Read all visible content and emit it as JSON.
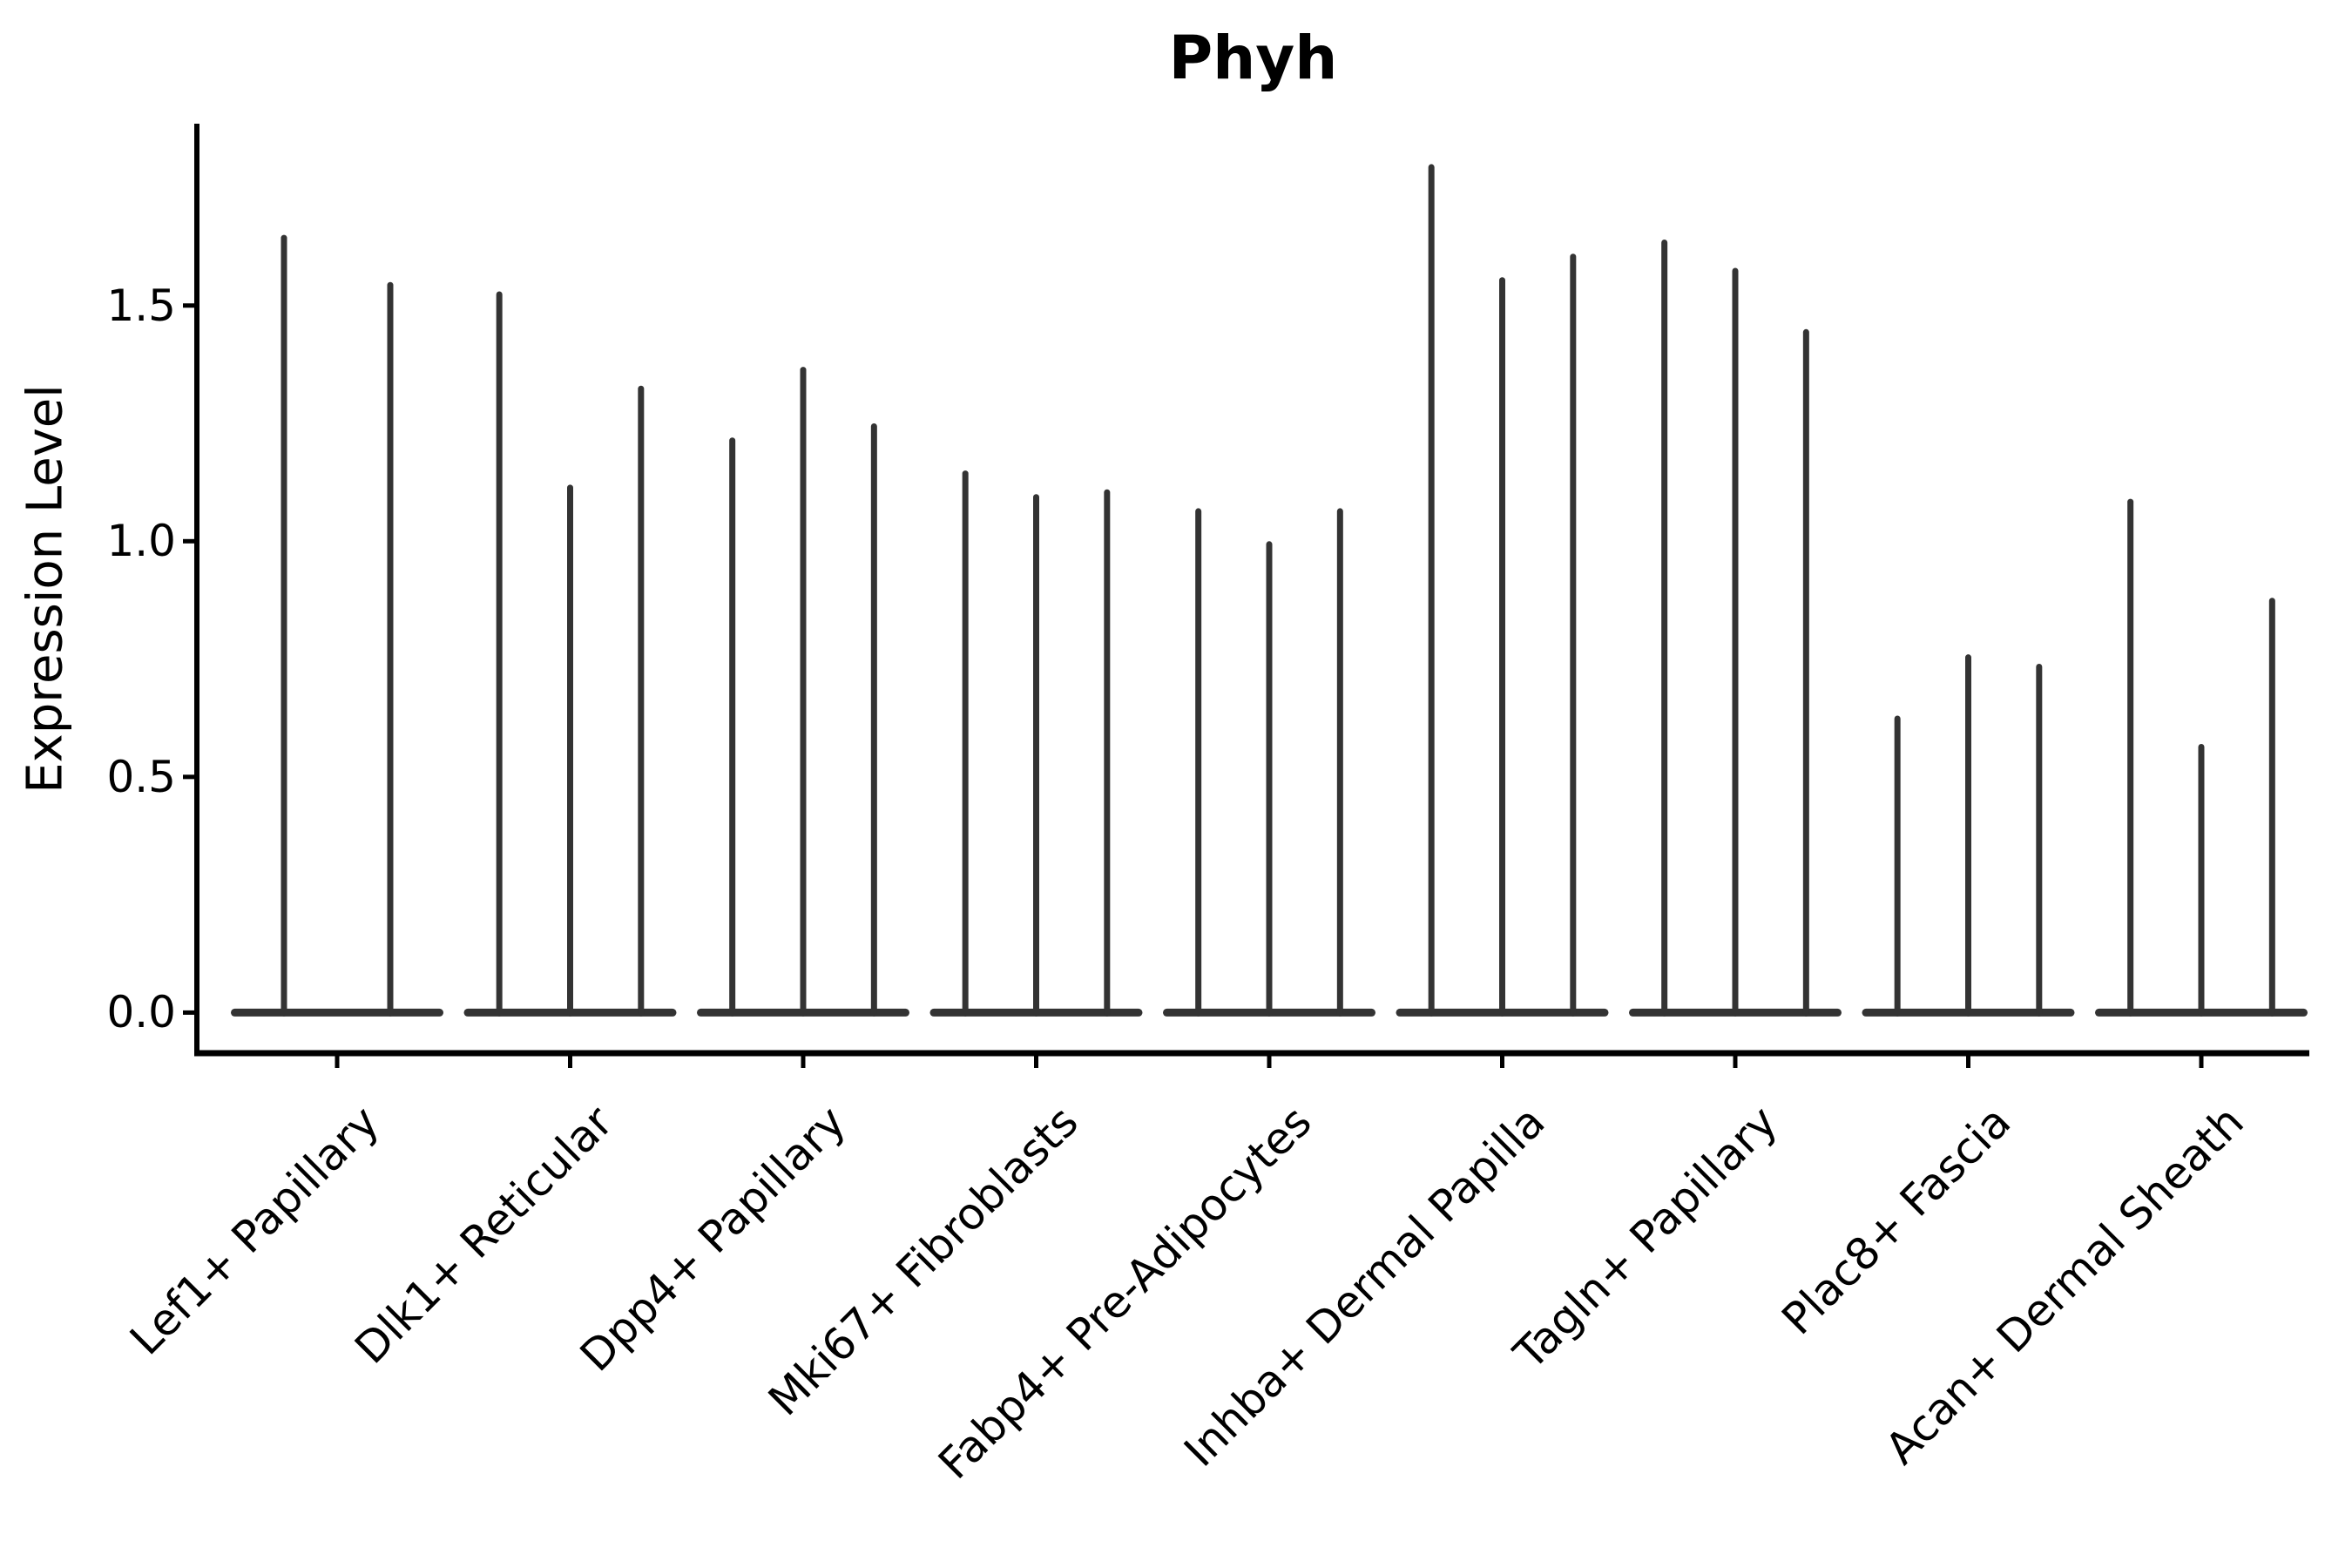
{
  "title": "Phyh",
  "axes": {
    "y_label": "Expression Level",
    "y_ticks": [
      "0.0",
      "0.5",
      "1.0",
      "1.5"
    ]
  },
  "chart_data": {
    "type": "violin",
    "title": "Phyh",
    "xlabel": "",
    "ylabel": "Expression Level",
    "ylim": [
      0,
      1.89
    ],
    "y_tick_values": [
      0.0,
      0.5,
      1.0,
      1.5
    ],
    "grid": false,
    "legend": "none",
    "description": "Thin violin plots; nearly all density mass at expression 0 (flat base) with narrow spikes reaching each violin's maximum expression value",
    "categories": [
      "Lef1+ Papillary",
      "Dlk1+ Reticular",
      "Dpp4+ Papillary",
      "Mki67+ Fibroblasts",
      "Fabp4+ Pre-Adipocytes",
      "Inhba+ Dermal Papilla",
      "Tagln+ Papillary",
      "Plac8+ Fascia",
      "Acan+ Dermal Sheath"
    ],
    "series": [
      {
        "category": "Lef1+ Papillary",
        "violin_max_values": [
          1.65,
          1.55
        ]
      },
      {
        "category": "Dlk1+ Reticular",
        "violin_max_values": [
          1.53,
          1.12,
          1.33
        ]
      },
      {
        "category": "Dpp4+ Papillary",
        "violin_max_values": [
          1.22,
          1.37,
          1.25
        ]
      },
      {
        "category": "Mki67+ Fibroblasts",
        "violin_max_values": [
          1.15,
          1.1,
          1.11
        ]
      },
      {
        "category": "Fabp4+ Pre-Adipocytes",
        "violin_max_values": [
          1.07,
          1.0,
          1.07
        ]
      },
      {
        "category": "Inhba+ Dermal Papilla",
        "violin_max_values": [
          1.8,
          1.56,
          1.61
        ]
      },
      {
        "category": "Tagln+ Papillary",
        "violin_max_values": [
          1.64,
          1.58,
          1.45
        ]
      },
      {
        "category": "Plac8+ Fascia",
        "violin_max_values": [
          0.63,
          0.76,
          0.74
        ]
      },
      {
        "category": "Acan+ Dermal Sheath",
        "violin_max_values": [
          1.09,
          0.57,
          0.88
        ]
      }
    ]
  },
  "colors": {
    "violin": "#333333",
    "axis": "#000000",
    "text": "#000000",
    "background": "#ffffff"
  }
}
